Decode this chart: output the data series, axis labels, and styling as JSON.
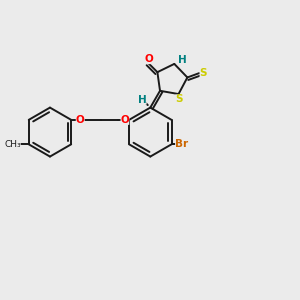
{
  "bg_color": "#ebebeb",
  "bond_color": "#1a1a1a",
  "atom_colors": {
    "O": "#ff0000",
    "N": "#0000cc",
    "S": "#cccc00",
    "Br": "#cc6600",
    "H": "#008080",
    "C": "#1a1a1a"
  }
}
